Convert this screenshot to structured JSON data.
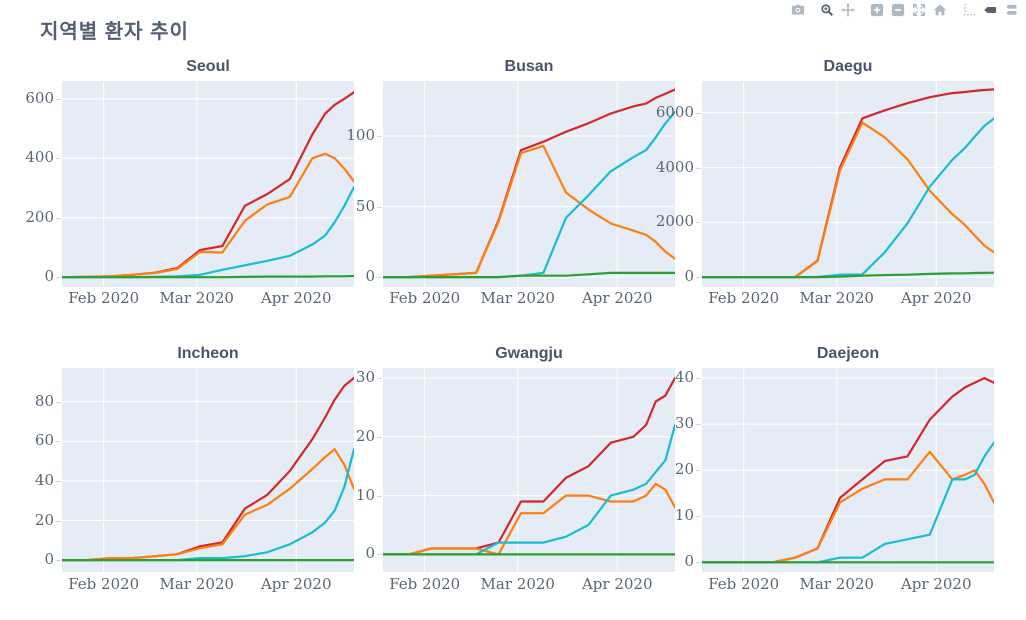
{
  "page": {
    "title": "지역별 환자 추이"
  },
  "modebar": {
    "icons": [
      "camera-icon",
      "zoom-icon",
      "pan-icon",
      "zoom-in-icon",
      "zoom-out-icon",
      "autoscale-icon",
      "reset-axes-home-icon",
      "spikelines-icon",
      "hover-closest-icon",
      "hover-compare-icon"
    ],
    "icon_color_light": "#b0b8c1",
    "icon_color_dark": "#5a6270"
  },
  "colors": {
    "plot_background": "#e5ecf6",
    "grid": "#ffffff",
    "title_text": "#4a546b",
    "tick_text": "#5a6576",
    "red": "#d62728",
    "orange": "#ff7f0e",
    "cyan": "#17becf",
    "green": "#2ca02c"
  },
  "chart_data": {
    "type": "line",
    "title": "지역별 환자 추이",
    "x": [
      "2020-01-19",
      "2020-01-27",
      "2020-02-03",
      "2020-02-10",
      "2020-02-17",
      "2020-02-24",
      "2020-03-02",
      "2020-03-09",
      "2020-03-16",
      "2020-03-23",
      "2020-03-30",
      "2020-04-06",
      "2020-04-10",
      "2020-04-13",
      "2020-04-16",
      "2020-04-19"
    ],
    "x_range": [
      "2020-01-19",
      "2020-04-19"
    ],
    "x_tick_dates": [
      "2020-02-01",
      "2020-03-01",
      "2020-04-01"
    ],
    "x_tick_labels": [
      "Feb 2020",
      "Mar 2020",
      "Apr 2020"
    ],
    "grid": true,
    "legend": "none",
    "subplots": [
      {
        "title": "Seoul",
        "ylim": [
          -33,
          660
        ],
        "yticks": [
          0,
          200,
          400,
          600
        ],
        "series": [
          {
            "name": "red",
            "color": "#d62728",
            "values": [
              0,
              1,
              3,
              8,
              15,
              31,
              91,
              105,
              240,
              280,
              330,
              480,
              550,
              580,
              600,
              622
            ]
          },
          {
            "name": "orange",
            "color": "#ff7f0e",
            "values": [
              0,
              1,
              3,
              8,
              14,
              28,
              85,
              83,
              190,
              245,
              270,
              400,
              415,
              400,
              365,
              322
            ]
          },
          {
            "name": "cyan",
            "color": "#17becf",
            "values": [
              0,
              0,
              0,
              0,
              1,
              3,
              8,
              25,
              40,
              55,
              72,
              110,
              140,
              185,
              240,
              303
            ]
          },
          {
            "name": "green",
            "color": "#2ca02c",
            "values": [
              0,
              0,
              0,
              0,
              0,
              0,
              0,
              0,
              1,
              2,
              2,
              2,
              3,
              3,
              3,
              4
            ]
          }
        ]
      },
      {
        "title": "Busan",
        "ylim": [
          -7,
          139
        ],
        "yticks": [
          0,
          50,
          100
        ],
        "series": [
          {
            "name": "red",
            "color": "#d62728",
            "values": [
              0,
              0,
              1,
              2,
              3,
              40,
              90,
              96,
              103,
              109,
              116,
              121,
              123,
              127,
              130,
              133
            ]
          },
          {
            "name": "orange",
            "color": "#ff7f0e",
            "values": [
              0,
              0,
              1,
              2,
              3,
              39,
              88,
              93,
              60,
              48,
              38,
              33,
              30,
              25,
              18,
              13
            ]
          },
          {
            "name": "cyan",
            "color": "#17becf",
            "values": [
              0,
              0,
              0,
              0,
              0,
              0,
              1,
              3,
              42,
              58,
              75,
              85,
              90,
              99,
              109,
              117
            ]
          },
          {
            "name": "green",
            "color": "#2ca02c",
            "values": [
              0,
              0,
              0,
              0,
              0,
              0,
              1,
              1,
              1,
              2,
              3,
              3,
              3,
              3,
              3,
              3
            ]
          }
        ]
      },
      {
        "title": "Daegu",
        "ylim": [
          -360,
          7160
        ],
        "yticks": [
          0,
          2000,
          4000,
          6000
        ],
        "series": [
          {
            "name": "red",
            "color": "#d62728",
            "values": [
              0,
              0,
              0,
              1,
              2,
              600,
              4006,
              5800,
              6090,
              6350,
              6570,
              6720,
              6760,
              6800,
              6830,
              6852
            ]
          },
          {
            "name": "orange",
            "color": "#ff7f0e",
            "values": [
              0,
              0,
              0,
              1,
              2,
              590,
              3900,
              5640,
              5100,
              4300,
              3150,
              2300,
              1900,
              1520,
              1150,
              900
            ]
          },
          {
            "name": "cyan",
            "color": "#17becf",
            "values": [
              0,
              0,
              0,
              0,
              0,
              5,
              90,
              105,
              915,
              1960,
              3300,
              4285,
              4720,
              5130,
              5520,
              5790
            ]
          },
          {
            "name": "green",
            "color": "#2ca02c",
            "values": [
              0,
              0,
              0,
              0,
              0,
              1,
              16,
              54,
              75,
              90,
              120,
              136,
              141,
              151,
              155,
              163
            ]
          }
        ]
      },
      {
        "title": "Incheon",
        "ylim": [
          -6,
          97
        ],
        "yticks": [
          0,
          20,
          40,
          60,
          80
        ],
        "series": [
          {
            "name": "red",
            "color": "#d62728",
            "values": [
              0,
              0,
              1,
              1,
              2,
              3,
              7,
              9,
              26,
              33,
              45,
              61,
              72,
              81,
              88,
              92
            ]
          },
          {
            "name": "orange",
            "color": "#ff7f0e",
            "values": [
              0,
              0,
              1,
              1,
              2,
              3,
              6,
              8,
              23,
              28,
              36,
              46,
              52,
              56,
              48,
              36
            ]
          },
          {
            "name": "cyan",
            "color": "#17becf",
            "values": [
              0,
              0,
              0,
              0,
              0,
              0,
              1,
              1,
              2,
              4,
              8,
              14,
              19,
              25,
              37,
              56
            ]
          },
          {
            "name": "green",
            "color": "#2ca02c",
            "values": [
              0,
              0,
              0,
              0,
              0,
              0,
              0,
              0,
              0,
              0,
              0,
              0,
              0,
              0,
              0,
              0
            ]
          }
        ]
      },
      {
        "title": "Gwangju",
        "ylim": [
          -3,
          31.7
        ],
        "yticks": [
          0,
          10,
          20,
          30
        ],
        "series": [
          {
            "name": "red",
            "color": "#d62728",
            "values": [
              0,
              0,
              1,
              1,
              1,
              2,
              9,
              9,
              13,
              15,
              19,
              20,
              22,
              26,
              27,
              30
            ]
          },
          {
            "name": "orange",
            "color": "#ff7f0e",
            "values": [
              0,
              0,
              1,
              1,
              1,
              0,
              7,
              7,
              10,
              10,
              9,
              9,
              10,
              12,
              11,
              8
            ]
          },
          {
            "name": "cyan",
            "color": "#17becf",
            "values": [
              0,
              0,
              0,
              0,
              0,
              2,
              2,
              2,
              3,
              5,
              10,
              11,
              12,
              14,
              16,
              22
            ]
          },
          {
            "name": "green",
            "color": "#2ca02c",
            "values": [
              0,
              0,
              0,
              0,
              0,
              0,
              0,
              0,
              0,
              0,
              0,
              0,
              0,
              0,
              0,
              0
            ]
          }
        ]
      },
      {
        "title": "Daejeon",
        "ylim": [
          -2.1,
          42.2
        ],
        "yticks": [
          0,
          10,
          20,
          30,
          40
        ],
        "series": [
          {
            "name": "red",
            "color": "#d62728",
            "values": [
              0,
              0,
              0,
              0,
              1,
              3,
              14,
              18,
              22,
              23,
              31,
              36,
              38,
              39,
              40,
              39
            ]
          },
          {
            "name": "orange",
            "color": "#ff7f0e",
            "values": [
              0,
              0,
              0,
              0,
              1,
              3,
              13,
              16,
              18,
              18,
              24,
              18,
              19,
              20,
              17,
              13
            ]
          },
          {
            "name": "cyan",
            "color": "#17becf",
            "values": [
              0,
              0,
              0,
              0,
              0,
              0,
              1,
              1,
              4,
              5,
              6,
              18,
              18,
              19,
              23,
              26
            ]
          },
          {
            "name": "green",
            "color": "#2ca02c",
            "values": [
              0,
              0,
              0,
              0,
              0,
              0,
              0,
              0,
              0,
              0,
              0,
              0,
              0,
              0,
              0,
              0
            ]
          }
        ]
      }
    ]
  }
}
